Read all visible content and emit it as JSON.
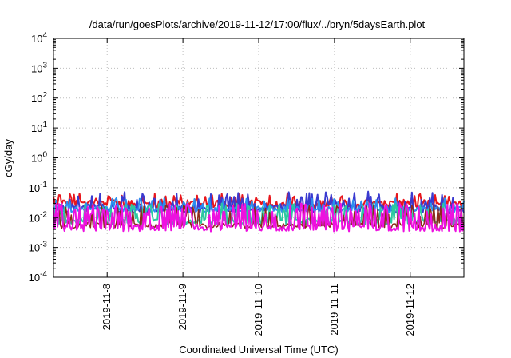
{
  "chart_data": {
    "type": "line",
    "title": "/data/run/goesPlots/archive/2019-11-12/17:00/flux/../bryn/5daysEarth.plot",
    "xlabel": "Coordinated Universal Time (UTC)",
    "ylabel": "cGy/day",
    "yscale": "log",
    "ylim": [
      0.0001,
      10000
    ],
    "xlim": [
      "2019-11-07T07:00",
      "2019-11-12T17:00"
    ],
    "grid": true,
    "legend": "none",
    "x_ticks": [
      "2019-11-8",
      "2019-11-9",
      "2019-11-10",
      "2019-11-11",
      "2019-11-12"
    ],
    "y_ticks": [
      {
        "base": "10",
        "exp": "-4"
      },
      {
        "base": "10",
        "exp": "-3"
      },
      {
        "base": "10",
        "exp": "-2"
      },
      {
        "base": "10",
        "exp": "-1"
      },
      {
        "base": "10",
        "exp": "0"
      },
      {
        "base": "10",
        "exp": "1"
      },
      {
        "base": "10",
        "exp": "2"
      },
      {
        "base": "10",
        "exp": "3"
      },
      {
        "base": "10",
        "exp": "4"
      }
    ],
    "series": [
      {
        "color": "#e8161c",
        "base": 0.028,
        "wobble": 0.14,
        "spike": 0.045,
        "spike_freq": 0.22,
        "width": 2
      },
      {
        "color": "#3a3ad0",
        "base": 0.02,
        "wobble": 0.16,
        "spike": 0.05,
        "spike_freq": 0.2,
        "width": 2
      },
      {
        "color": "#2a8ff0",
        "base": 0.019,
        "wobble": 0.1,
        "spike": 0.03,
        "spike_freq": 0.15,
        "width": 2
      },
      {
        "color": "#2cc8a0",
        "base": 0.0075,
        "wobble": 0.12,
        "spike": 0.02,
        "spike_freq": 0.25,
        "width": 2
      },
      {
        "color": "#8b2a1a",
        "base": 0.0055,
        "wobble": 0.1,
        "spike": 0.018,
        "spike_freq": 0.25,
        "width": 1.5
      },
      {
        "color": "#ee10e0",
        "base": 0.0045,
        "wobble": 0.12,
        "spike": 0.02,
        "spike_freq": 0.35,
        "width": 2
      }
    ]
  }
}
